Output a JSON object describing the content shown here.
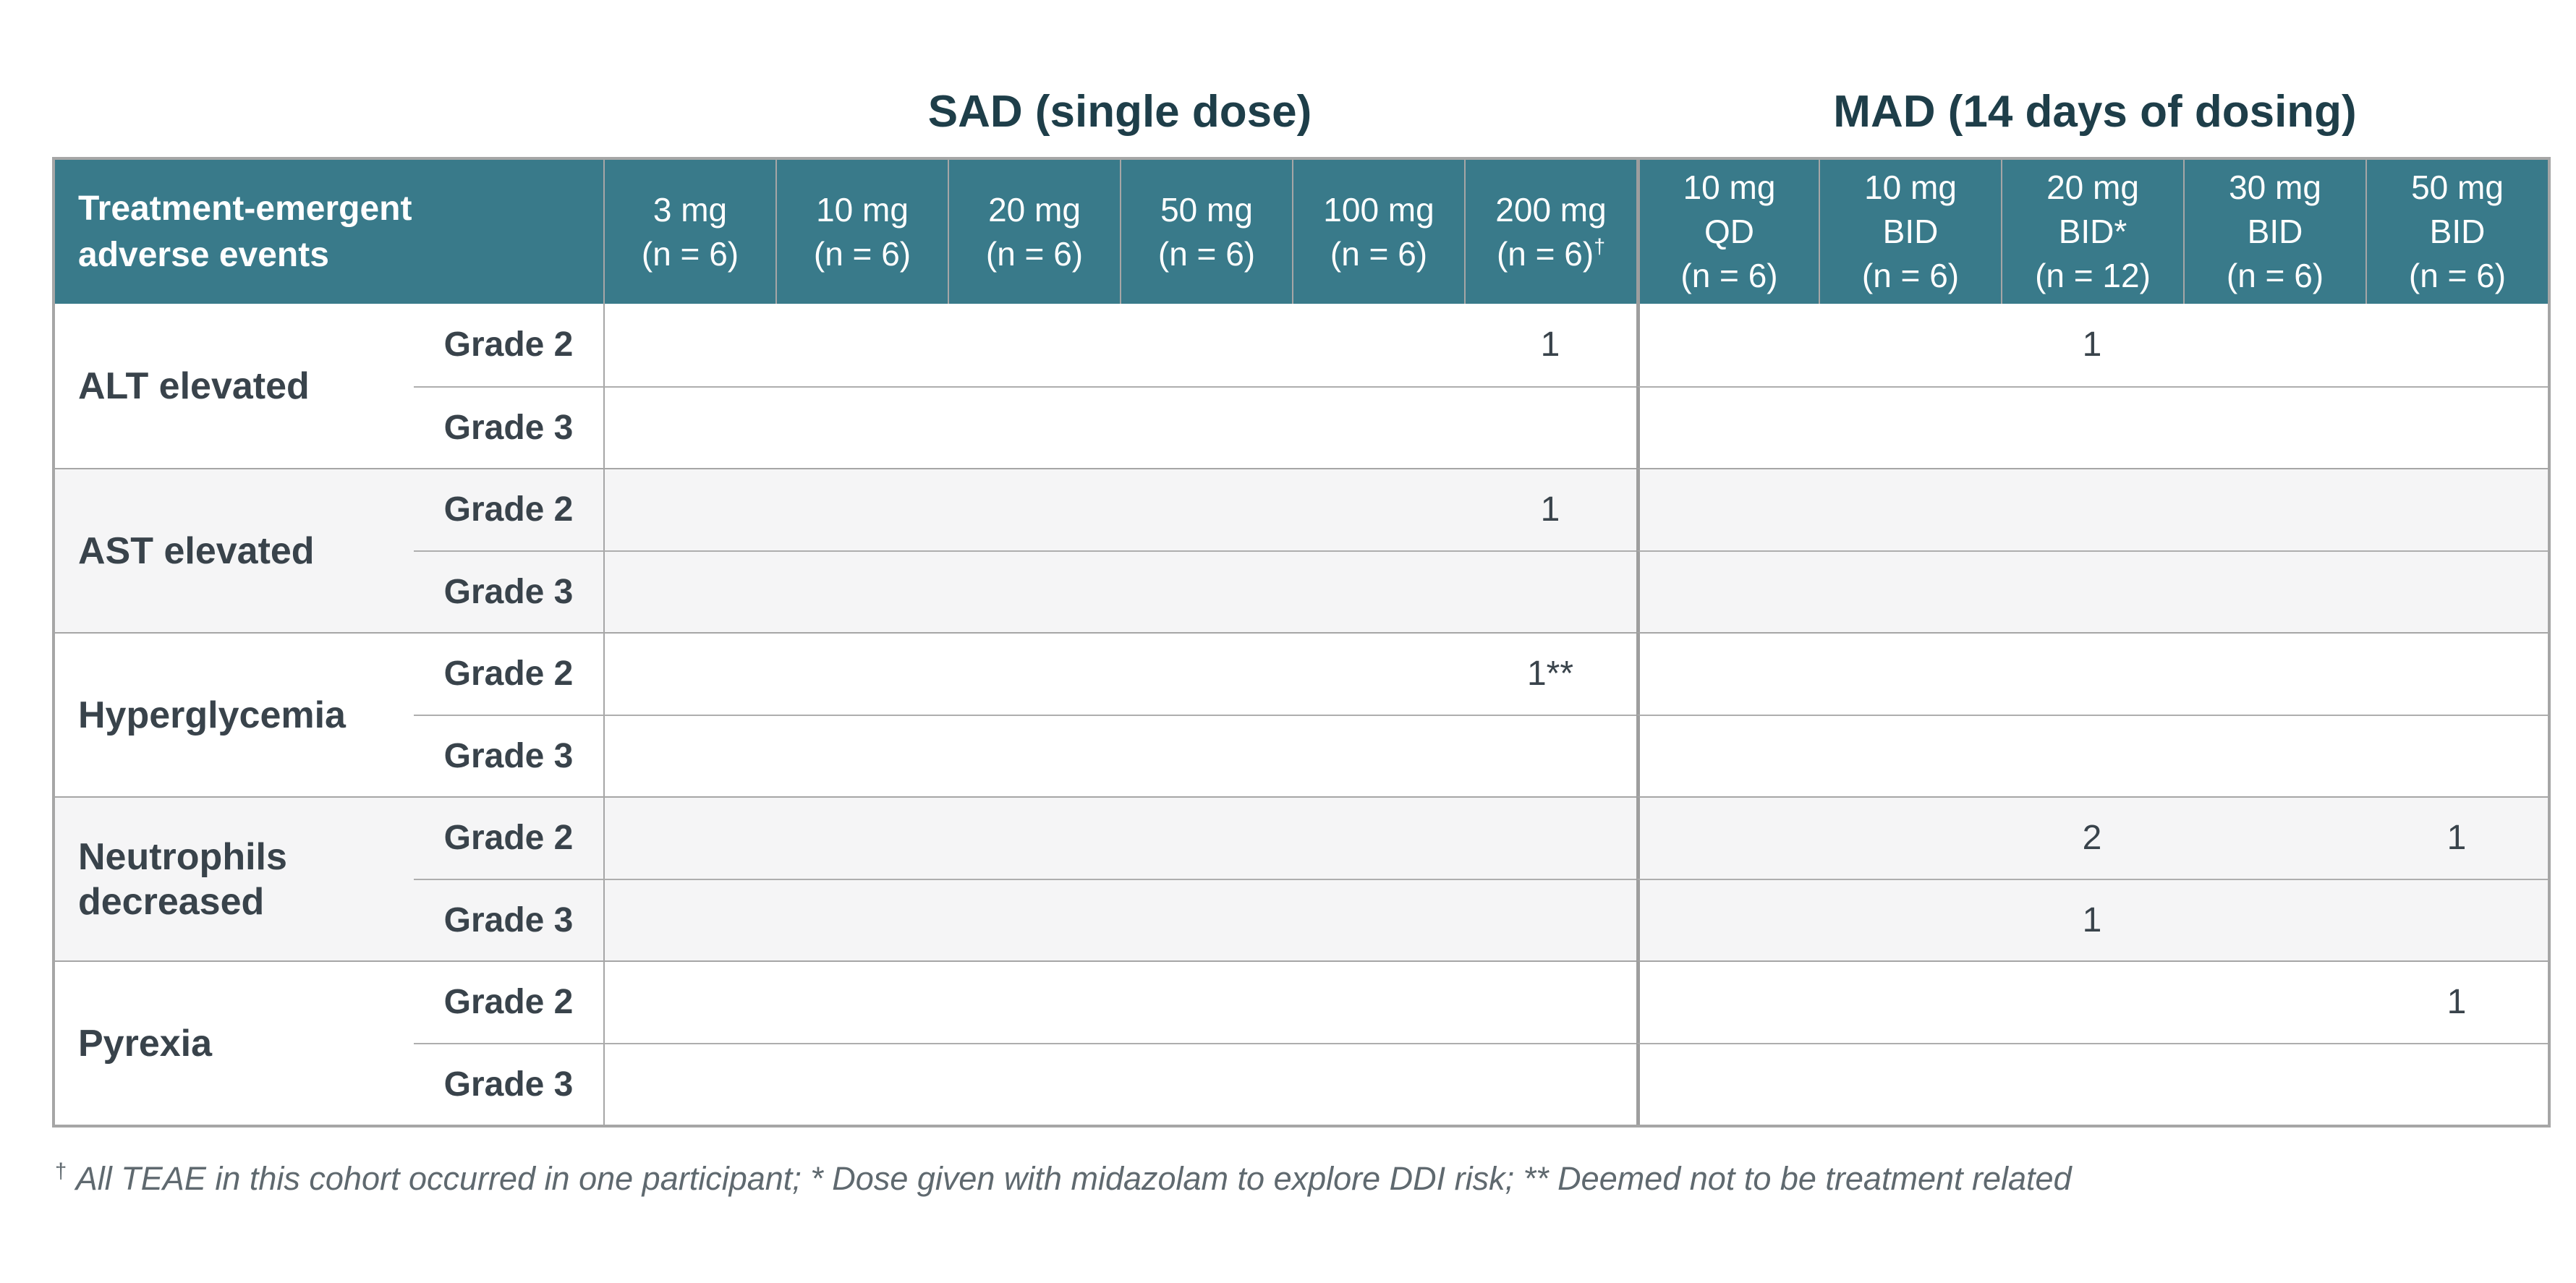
{
  "titles": {
    "sad": "SAD (single dose)",
    "mad": "MAD (14 days of dosing)"
  },
  "header": {
    "first_line1": "Treatment-emergent",
    "first_line2": "adverse events",
    "sad": [
      {
        "dose": "3 mg",
        "n": "(n = 6)"
      },
      {
        "dose": "10 mg",
        "n": "(n = 6)"
      },
      {
        "dose": "20 mg",
        "n": "(n = 6)"
      },
      {
        "dose": "50 mg",
        "n": "(n = 6)"
      },
      {
        "dose": "100 mg",
        "n": "(n = 6)"
      },
      {
        "dose": "200 mg",
        "n": "(n = 6)",
        "sup": "†"
      }
    ],
    "mad": [
      {
        "dose": "10 mg",
        "schedule": "QD",
        "n": "(n = 6)"
      },
      {
        "dose": "10 mg",
        "schedule": "BID",
        "n": "(n = 6)"
      },
      {
        "dose": "20 mg",
        "schedule": "BID*",
        "n": "(n = 12)"
      },
      {
        "dose": "30 mg",
        "schedule": "BID",
        "n": "(n = 6)"
      },
      {
        "dose": "50 mg",
        "schedule": "BID",
        "n": "(n = 6)"
      }
    ]
  },
  "rows": [
    {
      "event": "ALT elevated",
      "grades": [
        {
          "label": "Grade 2",
          "values": [
            "",
            "",
            "",
            "",
            "",
            "1",
            "",
            "",
            "1",
            "",
            ""
          ]
        },
        {
          "label": "Grade 3",
          "values": [
            "",
            "",
            "",
            "",
            "",
            "",
            "",
            "",
            "",
            "",
            ""
          ]
        }
      ]
    },
    {
      "event": "AST elevated",
      "grades": [
        {
          "label": "Grade 2",
          "values": [
            "",
            "",
            "",
            "",
            "",
            "1",
            "",
            "",
            "",
            "",
            ""
          ]
        },
        {
          "label": "Grade 3",
          "values": [
            "",
            "",
            "",
            "",
            "",
            "",
            "",
            "",
            "",
            "",
            ""
          ]
        }
      ]
    },
    {
      "event": "Hyperglycemia",
      "grades": [
        {
          "label": "Grade 2",
          "values": [
            "",
            "",
            "",
            "",
            "",
            "1**",
            "",
            "",
            "",
            "",
            ""
          ]
        },
        {
          "label": "Grade 3",
          "values": [
            "",
            "",
            "",
            "",
            "",
            "",
            "",
            "",
            "",
            "",
            ""
          ]
        }
      ]
    },
    {
      "event": "Neutrophils decreased",
      "grades": [
        {
          "label": "Grade 2",
          "values": [
            "",
            "",
            "",
            "",
            "",
            "",
            "",
            "",
            "2",
            "",
            "1"
          ]
        },
        {
          "label": "Grade 3",
          "values": [
            "",
            "",
            "",
            "",
            "",
            "",
            "",
            "",
            "1",
            "",
            ""
          ]
        }
      ]
    },
    {
      "event": "Pyrexia",
      "grades": [
        {
          "label": "Grade 2",
          "values": [
            "",
            "",
            "",
            "",
            "",
            "",
            "",
            "",
            "",
            "",
            "1"
          ]
        },
        {
          "label": "Grade 3",
          "values": [
            "",
            "",
            "",
            "",
            "",
            "",
            "",
            "",
            "",
            "",
            ""
          ]
        }
      ]
    }
  ],
  "footnote": {
    "dagger": "†",
    "text": "All TEAE in this cohort occurred in one participant; * Dose given with midazolam to explore DDI risk; ** Deemed not to be treatment related"
  },
  "colors": {
    "header_teal": "#397a8a",
    "group_title": "#1e3e49",
    "body_text": "#39434b",
    "zebra_row": "#f5f5f6",
    "border_gray": "#a6a6a6",
    "footnote_gray": "#5f696f"
  }
}
